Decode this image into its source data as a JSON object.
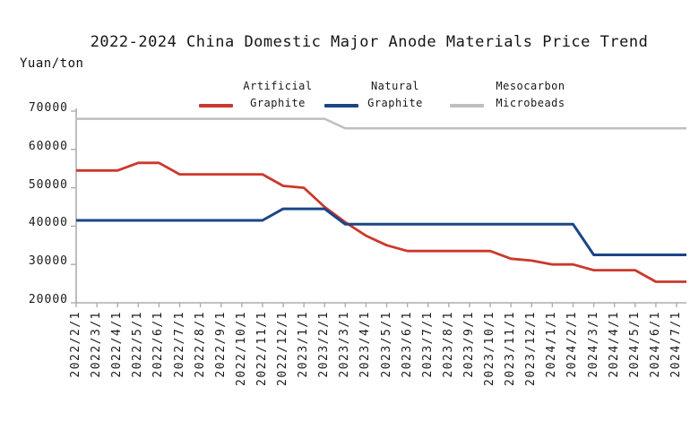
{
  "title": "2022-2024 China Domestic Major Anode Materials Price Trend",
  "y_axis_unit_label": "Yuan/ton",
  "legend": {
    "items": [
      {
        "line1": "Artificial",
        "line2": "Graphite"
      },
      {
        "line1": "Natural",
        "line2": "Graphite"
      },
      {
        "line1": "Mesocarbon",
        "line2": "Microbeads"
      }
    ]
  },
  "colors": {
    "artificial_graphite": "#CB382C",
    "natural_graphite": "#1B4586",
    "mesocarbon_microbeads": "#BFBFBF",
    "axis": "#ADADAD",
    "text": "#111111",
    "background": "#FFFFFF"
  },
  "chart_data": {
    "type": "line",
    "title": "2022-2024 China Domestic Major Anode Materials Price Trend",
    "xlabel": "",
    "ylabel": "Yuan/ton",
    "ylim": [
      20000,
      70000
    ],
    "y_ticks": [
      20000,
      30000,
      40000,
      50000,
      60000,
      70000
    ],
    "grid": false,
    "legend_position": "top",
    "categories": [
      "2022/2/1",
      "2022/3/1",
      "2022/4/1",
      "2022/5/1",
      "2022/6/1",
      "2022/7/1",
      "2022/8/1",
      "2022/9/1",
      "2022/10/1",
      "2022/11/1",
      "2022/12/1",
      "2023/1/1",
      "2023/2/1",
      "2023/3/1",
      "2023/4/1",
      "2023/5/1",
      "2023/6/1",
      "2023/7/1",
      "2023/8/1",
      "2023/9/1",
      "2023/10/1",
      "2023/11/1",
      "2023/12/1",
      "2024/1/1",
      "2024/2/1",
      "2024/3/1",
      "2024/4/1",
      "2024/5/1",
      "2024/6/1",
      "2024/7/1"
    ],
    "series": [
      {
        "name": "Artificial Graphite",
        "color": "#CB382C",
        "line_width": 2.8,
        "values": [
          54500,
          54500,
          54500,
          56500,
          56500,
          53500,
          53500,
          53500,
          53500,
          53500,
          50500,
          50000,
          45000,
          41000,
          37500,
          35000,
          33500,
          33500,
          33500,
          33500,
          33500,
          31500,
          31000,
          30000,
          30000,
          28500,
          28500,
          28500,
          25500,
          25500
        ]
      },
      {
        "name": "Natural Graphite",
        "color": "#1B4586",
        "line_width": 3,
        "values": [
          41500,
          41500,
          41500,
          41500,
          41500,
          41500,
          41500,
          41500,
          41500,
          41500,
          44500,
          44500,
          44500,
          40500,
          40500,
          40500,
          40500,
          40500,
          40500,
          40500,
          40500,
          40500,
          40500,
          40500,
          40500,
          32500,
          32500,
          32500,
          32500,
          32500
        ]
      },
      {
        "name": "Mesocarbon Microbeads",
        "color": "#BFBFBF",
        "line_width": 2.5,
        "values": [
          68000,
          68000,
          68000,
          68000,
          68000,
          68000,
          68000,
          68000,
          68000,
          68000,
          68000,
          68000,
          68000,
          65500,
          65500,
          65500,
          65500,
          65500,
          65500,
          65500,
          65500,
          65500,
          65500,
          65500,
          65500,
          65500,
          65500,
          65500,
          65500,
          65500
        ]
      }
    ]
  }
}
